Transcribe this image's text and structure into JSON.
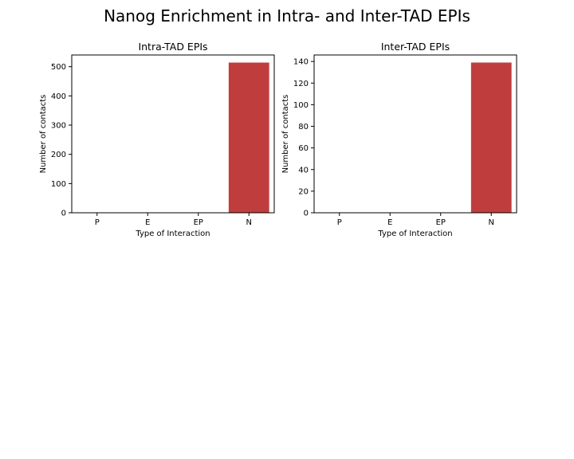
{
  "figure": {
    "title": "Nanog Enrichment in Intra- and Inter-TAD EPIs"
  },
  "colors": {
    "bar": "#c03d3e",
    "axes": "#000000",
    "background": "#ffffff"
  },
  "chart_data": [
    {
      "type": "bar",
      "title": "Intra-TAD EPIs",
      "xlabel": "Type of Interaction",
      "ylabel": "Number of contacts",
      "categories": [
        "P",
        "E",
        "EP",
        "N"
      ],
      "values": [
        0,
        0,
        0,
        514
      ],
      "ylim": [
        0,
        540
      ],
      "yticks": [
        0,
        100,
        200,
        300,
        400,
        500
      ],
      "grid": false
    },
    {
      "type": "bar",
      "title": "Inter-TAD EPIs",
      "xlabel": "Type of Interaction",
      "ylabel": "Number of contacts",
      "categories": [
        "P",
        "E",
        "EP",
        "N"
      ],
      "values": [
        0,
        0,
        0,
        139
      ],
      "ylim": [
        0,
        146
      ],
      "yticks": [
        0,
        20,
        40,
        60,
        80,
        100,
        120,
        140
      ],
      "grid": false
    }
  ]
}
